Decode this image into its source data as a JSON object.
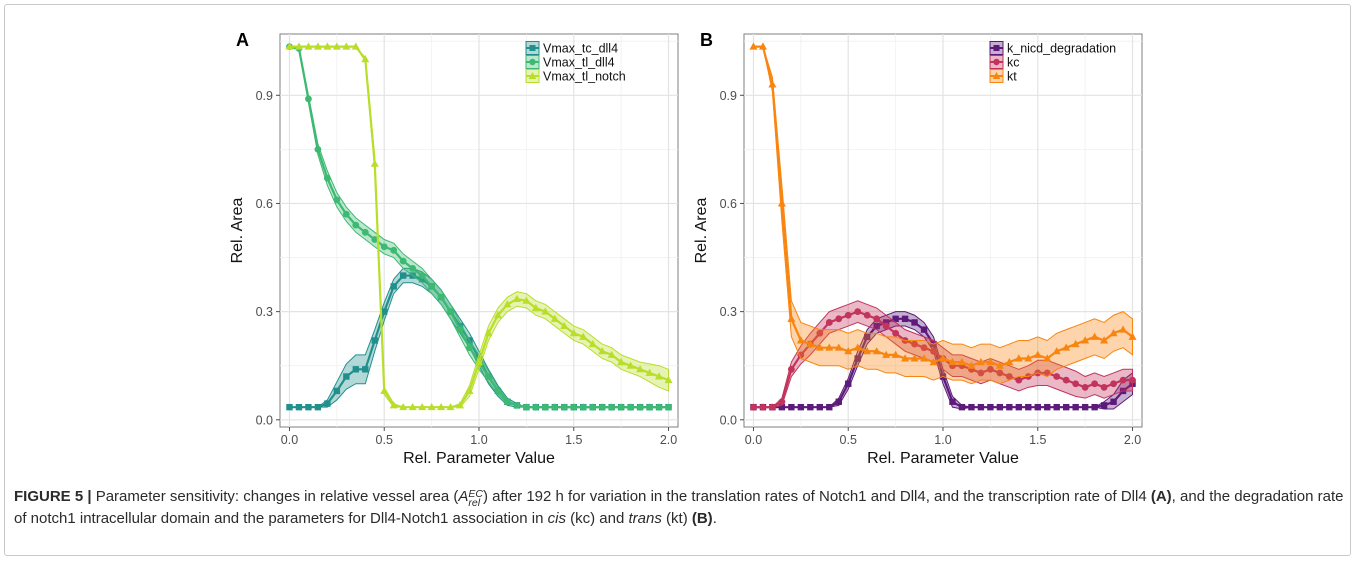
{
  "chart_data": [
    {
      "type": "line",
      "panel_label": "A",
      "xlabel": "Rel. Parameter Value",
      "ylabel": "Rel. Area",
      "xlim": [
        -0.05,
        2.05
      ],
      "ylim": [
        -0.02,
        1.07
      ],
      "xticks": [
        0.0,
        0.5,
        1.0,
        1.5,
        2.0
      ],
      "xtick_labels": [
        "0.0",
        "0.5",
        "1.0",
        "1.5",
        "2.0"
      ],
      "yticks": [
        0.0,
        0.3,
        0.6,
        0.9
      ],
      "ytick_labels": [
        "0.0",
        "0.3",
        "0.6",
        "0.9"
      ],
      "grid": true,
      "legend_position": "top-right",
      "series": [
        {
          "name": "Vmax_tc_dll4",
          "color": "#21908d",
          "marker": "square",
          "x": [
            0.0,
            0.05,
            0.1,
            0.15,
            0.2,
            0.25,
            0.3,
            0.35,
            0.4,
            0.45,
            0.5,
            0.55,
            0.6,
            0.65,
            0.7,
            0.75,
            0.8,
            0.85,
            0.9,
            0.95,
            1.0,
            1.05,
            1.1,
            1.15,
            1.2,
            1.25,
            1.3,
            1.35,
            1.4,
            1.45,
            1.5,
            1.55,
            1.6,
            1.65,
            1.7,
            1.75,
            1.8,
            1.85,
            1.9,
            1.95,
            2.0
          ],
          "y": [
            0.035,
            0.035,
            0.035,
            0.035,
            0.045,
            0.08,
            0.12,
            0.14,
            0.14,
            0.22,
            0.3,
            0.37,
            0.4,
            0.4,
            0.39,
            0.37,
            0.34,
            0.3,
            0.26,
            0.22,
            0.17,
            0.12,
            0.08,
            0.05,
            0.04,
            0.035,
            0.035,
            0.035,
            0.035,
            0.035,
            0.035,
            0.035,
            0.035,
            0.035,
            0.035,
            0.035,
            0.035,
            0.035,
            0.035,
            0.035,
            0.035
          ],
          "band": [
            0.0,
            0.0,
            0.0,
            0.0,
            0.01,
            0.025,
            0.035,
            0.04,
            0.04,
            0.03,
            0.025,
            0.02,
            0.02,
            0.02,
            0.02,
            0.02,
            0.02,
            0.02,
            0.02,
            0.02,
            0.02,
            0.02,
            0.015,
            0.01,
            0.005,
            0.0,
            0.0,
            0.0,
            0.0,
            0.0,
            0.0,
            0.0,
            0.0,
            0.0,
            0.0,
            0.0,
            0.0,
            0.0,
            0.0,
            0.0,
            0.0
          ]
        },
        {
          "name": "Vmax_tl_dll4",
          "color": "#3db972",
          "marker": "circle",
          "x": [
            0.0,
            0.05,
            0.1,
            0.15,
            0.2,
            0.25,
            0.3,
            0.35,
            0.4,
            0.45,
            0.5,
            0.55,
            0.6,
            0.65,
            0.7,
            0.75,
            0.8,
            0.85,
            0.9,
            0.95,
            1.0,
            1.05,
            1.1,
            1.15,
            1.2,
            1.25,
            1.3,
            1.35,
            1.4,
            1.45,
            1.5,
            1.55,
            1.6,
            1.65,
            1.7,
            1.75,
            1.8,
            1.85,
            1.9,
            1.95,
            2.0
          ],
          "y": [
            1.035,
            1.03,
            0.89,
            0.75,
            0.67,
            0.61,
            0.57,
            0.54,
            0.52,
            0.5,
            0.48,
            0.47,
            0.44,
            0.42,
            0.4,
            0.37,
            0.34,
            0.3,
            0.25,
            0.2,
            0.16,
            0.12,
            0.08,
            0.05,
            0.04,
            0.035,
            0.035,
            0.035,
            0.035,
            0.035,
            0.035,
            0.035,
            0.035,
            0.035,
            0.035,
            0.035,
            0.035,
            0.035,
            0.035,
            0.035,
            0.035
          ],
          "band": [
            0.0,
            0.005,
            0.01,
            0.015,
            0.02,
            0.02,
            0.02,
            0.02,
            0.02,
            0.02,
            0.02,
            0.02,
            0.02,
            0.02,
            0.02,
            0.02,
            0.02,
            0.02,
            0.02,
            0.02,
            0.02,
            0.015,
            0.01,
            0.005,
            0.0,
            0.0,
            0.0,
            0.0,
            0.0,
            0.0,
            0.0,
            0.0,
            0.0,
            0.0,
            0.0,
            0.0,
            0.0,
            0.0,
            0.0,
            0.0,
            0.0
          ]
        },
        {
          "name": "Vmax_tl_notch",
          "color": "#b8de29",
          "marker": "triangle",
          "x": [
            0.0,
            0.05,
            0.1,
            0.15,
            0.2,
            0.25,
            0.3,
            0.35,
            0.4,
            0.45,
            0.5,
            0.55,
            0.6,
            0.65,
            0.7,
            0.75,
            0.8,
            0.85,
            0.9,
            0.95,
            1.0,
            1.05,
            1.1,
            1.15,
            1.2,
            1.25,
            1.3,
            1.35,
            1.4,
            1.45,
            1.5,
            1.55,
            1.6,
            1.65,
            1.7,
            1.75,
            1.8,
            1.85,
            1.9,
            1.95,
            2.0
          ],
          "y": [
            1.035,
            1.035,
            1.035,
            1.035,
            1.035,
            1.035,
            1.035,
            1.035,
            1.0,
            0.71,
            0.08,
            0.04,
            0.035,
            0.035,
            0.035,
            0.035,
            0.035,
            0.035,
            0.04,
            0.08,
            0.16,
            0.24,
            0.29,
            0.32,
            0.335,
            0.33,
            0.31,
            0.3,
            0.28,
            0.26,
            0.24,
            0.23,
            0.21,
            0.19,
            0.18,
            0.16,
            0.15,
            0.14,
            0.13,
            0.12,
            0.11
          ],
          "band": [
            0.0,
            0.0,
            0.0,
            0.0,
            0.0,
            0.0,
            0.0,
            0.0,
            0.005,
            0.02,
            0.01,
            0.005,
            0.0,
            0.0,
            0.0,
            0.0,
            0.0,
            0.0,
            0.005,
            0.015,
            0.02,
            0.02,
            0.02,
            0.02,
            0.02,
            0.02,
            0.02,
            0.02,
            0.02,
            0.02,
            0.02,
            0.02,
            0.02,
            0.02,
            0.02,
            0.02,
            0.02,
            0.02,
            0.025,
            0.03,
            0.03
          ]
        }
      ]
    },
    {
      "type": "line",
      "panel_label": "B",
      "xlabel": "Rel. Parameter Value",
      "ylabel": "Rel. Area",
      "xlim": [
        -0.05,
        2.05
      ],
      "ylim": [
        -0.02,
        1.07
      ],
      "xticks": [
        0.0,
        0.5,
        1.0,
        1.5,
        2.0
      ],
      "xtick_labels": [
        "0.0",
        "0.5",
        "1.0",
        "1.5",
        "2.0"
      ],
      "yticks": [
        0.0,
        0.3,
        0.6,
        0.9
      ],
      "ytick_labels": [
        "0.0",
        "0.3",
        "0.6",
        "0.9"
      ],
      "grid": true,
      "legend_position": "top-right",
      "series": [
        {
          "name": "k_nicd_degradation",
          "color": "#5c1a7a",
          "marker": "square",
          "x": [
            0.0,
            0.05,
            0.1,
            0.15,
            0.2,
            0.25,
            0.3,
            0.35,
            0.4,
            0.45,
            0.5,
            0.55,
            0.6,
            0.65,
            0.7,
            0.75,
            0.8,
            0.85,
            0.9,
            0.95,
            1.0,
            1.05,
            1.1,
            1.15,
            1.2,
            1.25,
            1.3,
            1.35,
            1.4,
            1.45,
            1.5,
            1.55,
            1.6,
            1.65,
            1.7,
            1.75,
            1.8,
            1.85,
            1.9,
            1.95,
            2.0
          ],
          "y": [
            0.035,
            0.035,
            0.035,
            0.035,
            0.035,
            0.035,
            0.035,
            0.035,
            0.035,
            0.05,
            0.1,
            0.17,
            0.23,
            0.26,
            0.27,
            0.28,
            0.28,
            0.27,
            0.25,
            0.21,
            0.12,
            0.05,
            0.035,
            0.035,
            0.035,
            0.035,
            0.035,
            0.035,
            0.035,
            0.035,
            0.035,
            0.035,
            0.035,
            0.035,
            0.035,
            0.035,
            0.035,
            0.04,
            0.05,
            0.08,
            0.1
          ],
          "band": [
            0.0,
            0.0,
            0.0,
            0.0,
            0.0,
            0.0,
            0.0,
            0.0,
            0.0,
            0.01,
            0.015,
            0.02,
            0.02,
            0.02,
            0.02,
            0.02,
            0.02,
            0.02,
            0.02,
            0.02,
            0.02,
            0.015,
            0.005,
            0.0,
            0.0,
            0.0,
            0.0,
            0.0,
            0.0,
            0.0,
            0.0,
            0.0,
            0.0,
            0.0,
            0.0,
            0.0,
            0.0,
            0.01,
            0.02,
            0.03,
            0.03
          ]
        },
        {
          "name": "kc",
          "color": "#c2345c",
          "marker": "circle",
          "x": [
            0.0,
            0.05,
            0.1,
            0.15,
            0.2,
            0.25,
            0.3,
            0.35,
            0.4,
            0.45,
            0.5,
            0.55,
            0.6,
            0.65,
            0.7,
            0.75,
            0.8,
            0.85,
            0.9,
            0.95,
            1.0,
            1.05,
            1.1,
            1.15,
            1.2,
            1.25,
            1.3,
            1.35,
            1.4,
            1.45,
            1.5,
            1.55,
            1.6,
            1.65,
            1.7,
            1.75,
            1.8,
            1.85,
            1.9,
            1.95,
            2.0
          ],
          "y": [
            0.035,
            0.035,
            0.035,
            0.05,
            0.14,
            0.18,
            0.21,
            0.24,
            0.27,
            0.28,
            0.29,
            0.3,
            0.29,
            0.28,
            0.26,
            0.24,
            0.22,
            0.21,
            0.2,
            0.19,
            0.17,
            0.15,
            0.15,
            0.14,
            0.13,
            0.14,
            0.13,
            0.12,
            0.11,
            0.12,
            0.13,
            0.13,
            0.12,
            0.11,
            0.1,
            0.09,
            0.1,
            0.09,
            0.1,
            0.11,
            0.11
          ],
          "band": [
            0.0,
            0.0,
            0.0,
            0.01,
            0.02,
            0.025,
            0.03,
            0.03,
            0.03,
            0.03,
            0.03,
            0.03,
            0.03,
            0.03,
            0.03,
            0.03,
            0.03,
            0.03,
            0.03,
            0.03,
            0.03,
            0.03,
            0.03,
            0.03,
            0.03,
            0.03,
            0.03,
            0.03,
            0.03,
            0.03,
            0.035,
            0.035,
            0.035,
            0.035,
            0.035,
            0.03,
            0.03,
            0.03,
            0.03,
            0.03,
            0.03
          ]
        },
        {
          "name": "kt",
          "color": "#f8850f",
          "marker": "triangle",
          "x": [
            0.0,
            0.05,
            0.1,
            0.15,
            0.2,
            0.25,
            0.3,
            0.35,
            0.4,
            0.45,
            0.5,
            0.55,
            0.6,
            0.65,
            0.7,
            0.75,
            0.8,
            0.85,
            0.9,
            0.95,
            1.0,
            1.05,
            1.1,
            1.15,
            1.2,
            1.25,
            1.3,
            1.35,
            1.4,
            1.45,
            1.5,
            1.55,
            1.6,
            1.65,
            1.7,
            1.75,
            1.8,
            1.85,
            1.9,
            1.95,
            2.0
          ],
          "y": [
            1.035,
            1.035,
            0.93,
            0.6,
            0.28,
            0.22,
            0.21,
            0.2,
            0.2,
            0.2,
            0.19,
            0.2,
            0.19,
            0.19,
            0.18,
            0.18,
            0.17,
            0.17,
            0.17,
            0.16,
            0.17,
            0.16,
            0.16,
            0.15,
            0.16,
            0.16,
            0.15,
            0.16,
            0.17,
            0.17,
            0.18,
            0.17,
            0.19,
            0.2,
            0.21,
            0.22,
            0.23,
            0.22,
            0.24,
            0.25,
            0.23
          ],
          "band": [
            0.0,
            0.0,
            0.02,
            0.05,
            0.05,
            0.05,
            0.05,
            0.05,
            0.05,
            0.05,
            0.05,
            0.05,
            0.05,
            0.05,
            0.05,
            0.05,
            0.05,
            0.05,
            0.05,
            0.05,
            0.05,
            0.05,
            0.05,
            0.05,
            0.05,
            0.05,
            0.05,
            0.05,
            0.05,
            0.05,
            0.05,
            0.05,
            0.05,
            0.05,
            0.05,
            0.05,
            0.05,
            0.05,
            0.05,
            0.05,
            0.05
          ]
        }
      ]
    }
  ],
  "caption": {
    "figure_label": "FIGURE 5 |",
    "text_1": " Parameter sensitivity: changes in relative vessel area (",
    "symbol": "A",
    "sup": "EC",
    "sub": "rel",
    "text_2": ") after 192 h for variation in the translation rates of Notch1 and Dll4, and the transcription rate of Dll4 ",
    "ref_a": "(A)",
    "text_3": ", and the degradation rate of notch1 intracellular domain and the parameters for Dll4-Notch1 association in ",
    "cis": "cis",
    "text_4": " (kc) and ",
    "trans": "trans",
    "text_5": " (kt) ",
    "ref_b": "(B)",
    "text_6": "."
  }
}
